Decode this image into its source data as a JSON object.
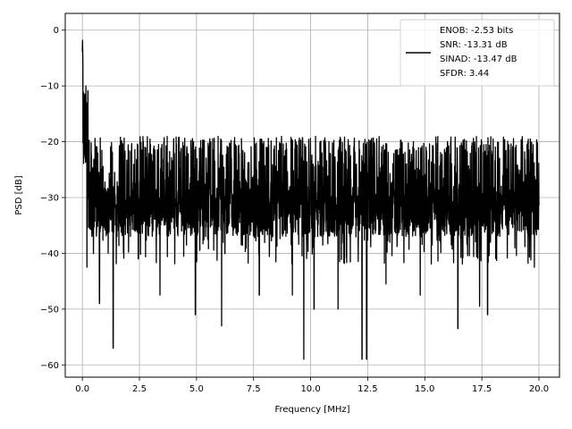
{
  "chart_data": {
    "type": "line",
    "title": "",
    "xlabel": "Frequency [MHz]",
    "ylabel": "PSD [dB]",
    "xlim": [
      -0.75,
      20.9
    ],
    "ylim": [
      -62.2,
      3.0
    ],
    "grid": true,
    "legend_position": "top-right",
    "x_ticks": [
      0.0,
      2.5,
      5.0,
      7.5,
      10.0,
      12.5,
      15.0,
      17.5,
      20.0
    ],
    "x_tick_labels": [
      "0.0",
      "2.5",
      "5.0",
      "7.5",
      "10.0",
      "12.5",
      "15.0",
      "17.5",
      "20.0"
    ],
    "y_ticks": [
      0,
      -10,
      -20,
      -30,
      -40,
      -50,
      -60
    ],
    "y_tick_labels": [
      "0",
      "−10",
      "−20",
      "−30",
      "−40",
      "−50",
      "−60"
    ],
    "series": [
      {
        "name": "ENOB: -2.53 bits\nSNR: -13.31 dB\nSINAD: -13.47 dB\nSFDR: 3.44",
        "color": "#000000",
        "x_range": [
          0.0,
          20.0
        ],
        "peak": {
          "x": 0.02,
          "y": 0.0
        },
        "noise_floor_mean": -28,
        "noise_band": [
          -37,
          -19
        ],
        "notable_dips": [
          {
            "x": 0.2,
            "y": -42.5
          },
          {
            "x": 0.75,
            "y": -49.0
          },
          {
            "x": 1.35,
            "y": -57.0
          },
          {
            "x": 2.45,
            "y": -41.0
          },
          {
            "x": 3.4,
            "y": -47.5
          },
          {
            "x": 4.95,
            "y": -51.0
          },
          {
            "x": 6.1,
            "y": -53.0
          },
          {
            "x": 7.75,
            "y": -47.5
          },
          {
            "x": 9.2,
            "y": -47.5
          },
          {
            "x": 9.7,
            "y": -59.0
          },
          {
            "x": 10.15,
            "y": -50.0
          },
          {
            "x": 11.2,
            "y": -50.0
          },
          {
            "x": 12.25,
            "y": -59.0
          },
          {
            "x": 12.45,
            "y": -59.0
          },
          {
            "x": 13.3,
            "y": -45.5
          },
          {
            "x": 14.8,
            "y": -47.5
          },
          {
            "x": 16.45,
            "y": -53.5
          },
          {
            "x": 17.4,
            "y": -49.5
          },
          {
            "x": 17.75,
            "y": -51.0
          },
          {
            "x": 19.8,
            "y": -42.5
          }
        ]
      }
    ]
  },
  "legend": {
    "lines": [
      "ENOB: -2.53 bits",
      "SNR: -13.31 dB",
      "SINAD: -13.47 dB",
      "SFDR: 3.44"
    ]
  }
}
